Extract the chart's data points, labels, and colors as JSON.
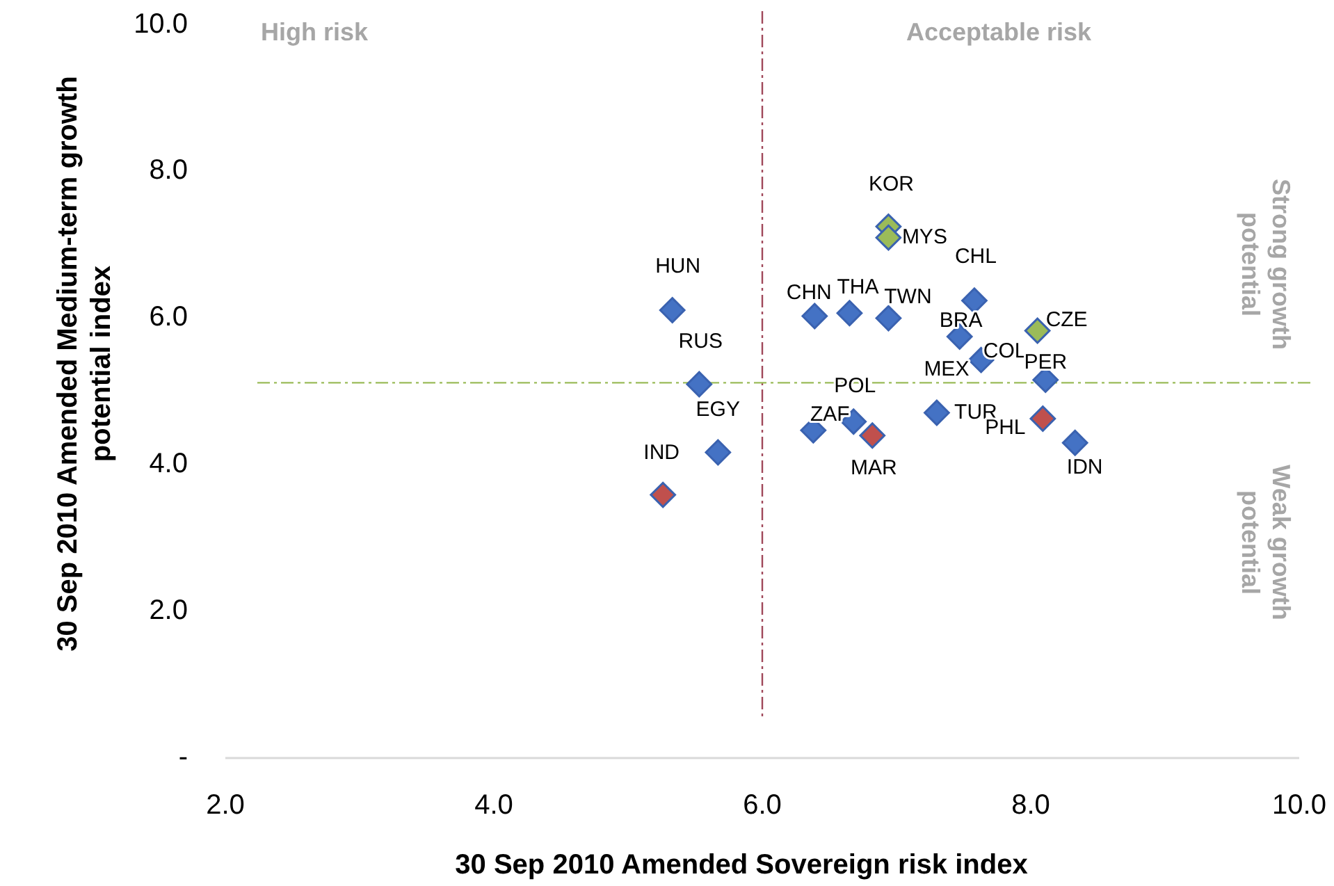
{
  "chart_data": {
    "type": "scatter",
    "xlabel": "30 Sep 2010 Amended Sovereign risk index",
    "ylabel": "30 Sep 2010 Amended Medium-term growth potential index",
    "xlim": [
      2,
      10
    ],
    "xticks": [
      {
        "value": 2,
        "label": "2.0"
      },
      {
        "value": 4,
        "label": "4.0"
      },
      {
        "value": 6,
        "label": "6.0"
      },
      {
        "value": 8,
        "label": "8.0"
      },
      {
        "value": 10,
        "label": "10.0"
      }
    ],
    "ylim": [
      0,
      10
    ],
    "yticks": [
      {
        "value": 0,
        "label": "-"
      },
      {
        "value": 2,
        "label": "2.0"
      },
      {
        "value": 4,
        "label": "4.0"
      },
      {
        "value": 6,
        "label": "6.0"
      },
      {
        "value": 8,
        "label": "8.0"
      },
      {
        "value": 10,
        "label": "10.0"
      }
    ],
    "marker": "diamond",
    "grid": false,
    "series": [
      {
        "color": "#4472c4",
        "x": [
          5.33,
          5.53,
          5.67,
          6.39,
          6.65,
          6.94,
          7.58,
          7.47,
          7.63,
          8.11,
          7.3,
          6.68,
          6.38,
          8.33
        ],
        "values": [
          6.11,
          5.1,
          4.17,
          6.03,
          6.07,
          6.0,
          6.24,
          5.75,
          5.43,
          5.16,
          4.71,
          4.59,
          4.47,
          4.3
        ]
      },
      {
        "color": "#c0504d",
        "x": [
          5.26,
          6.82,
          8.09
        ],
        "values": [
          3.59,
          4.4,
          4.63
        ]
      },
      {
        "color": "#9bbb59",
        "x": [
          6.94,
          6.94,
          8.05
        ],
        "values": [
          7.25,
          7.1,
          5.83
        ]
      }
    ],
    "ref_lines": [
      {
        "axis": "x",
        "value": 6,
        "color": "#a0485a",
        "line_style": "dashdot"
      },
      {
        "axis": "y",
        "value": 5.12,
        "color": "#9bbb59",
        "line_style": "dashdot"
      }
    ],
    "annotations": [
      "High risk",
      "Acceptable risk",
      "Strong growth potential",
      "Weak growth potential",
      {
        "text": "HUN",
        "x": 5.33,
        "y": 6.11
      },
      {
        "text": "RUS",
        "x": 5.53,
        "y": 5.1
      },
      {
        "text": "EGY",
        "x": 5.67,
        "y": 4.17
      },
      {
        "text": "IND",
        "x": 5.26,
        "y": 3.59
      },
      {
        "text": "CHN",
        "x": 6.39,
        "y": 6.03
      },
      {
        "text": "THA",
        "x": 6.65,
        "y": 6.07
      },
      {
        "text": "TWN",
        "x": 6.94,
        "y": 6.0
      },
      {
        "text": "KOR",
        "x": 6.94,
        "y": 7.25
      },
      {
        "text": "MYS",
        "x": 6.94,
        "y": 7.1
      },
      {
        "text": "CHL",
        "x": 7.58,
        "y": 6.24
      },
      {
        "text": "BRA",
        "x": 7.47,
        "y": 5.75
      },
      {
        "text": "COL",
        "x": 7.63,
        "y": 5.43
      },
      {
        "text": "CZE",
        "x": 8.05,
        "y": 5.83
      },
      {
        "text": "PER",
        "x": 8.11,
        "y": 5.16
      },
      {
        "text": "MEX",
        "x": 7.3,
        "y": 4.71
      },
      {
        "text": "TUR",
        "x": 7.3,
        "y": 4.71
      },
      {
        "text": "POL",
        "x": 6.68,
        "y": 4.59
      },
      {
        "text": "ZAF",
        "x": 6.38,
        "y": 4.47
      },
      {
        "text": "MAR",
        "x": 6.82,
        "y": 4.4
      },
      {
        "text": "PHL",
        "x": 8.09,
        "y": 4.63
      },
      {
        "text": "IDN",
        "x": 8.33,
        "y": 4.3
      }
    ]
  }
}
